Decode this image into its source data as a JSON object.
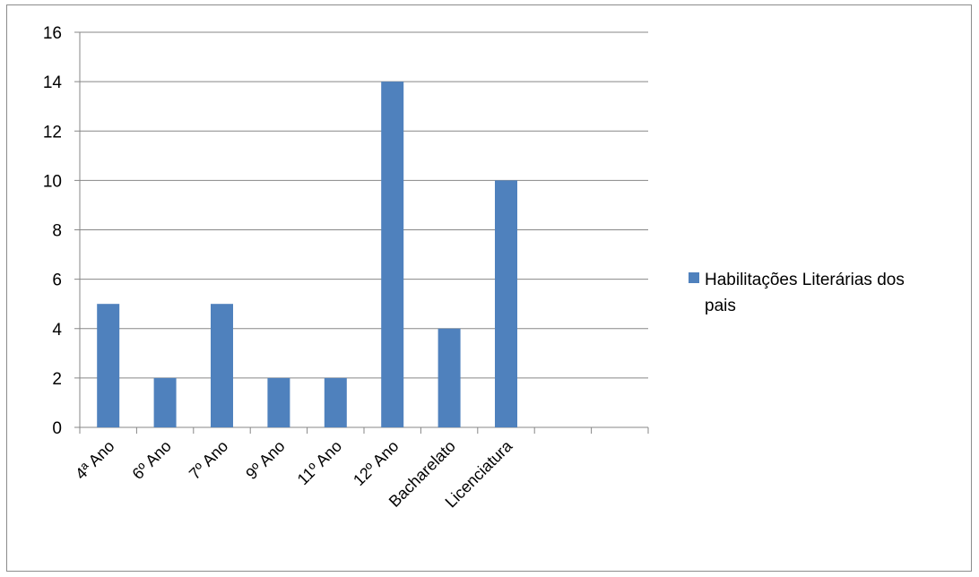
{
  "chart_data": {
    "type": "bar",
    "categories": [
      "4ª Ano",
      "6º Ano",
      "7º Ano",
      "9º Ano",
      "11º Ano",
      "12º Ano",
      "Bacharelato",
      "Licenciatura",
      "",
      ""
    ],
    "series": [
      {
        "name": "Habilitações Literárias dos pais",
        "values": [
          5,
          2,
          5,
          2,
          2,
          14,
          4,
          10,
          null,
          null
        ],
        "color": "#4f81bd"
      }
    ],
    "ylim": [
      0,
      16
    ],
    "yticks": [
      0,
      2,
      4,
      6,
      8,
      10,
      12,
      14,
      16
    ],
    "grid": true,
    "legend_position": "right",
    "legend_lines": [
      "Habilitações Literárias dos",
      "pais"
    ]
  }
}
